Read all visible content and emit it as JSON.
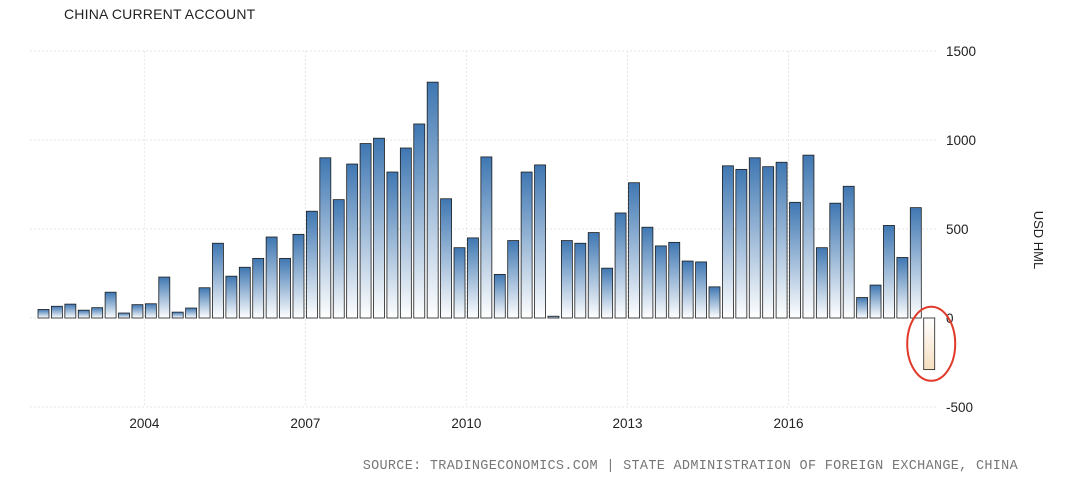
{
  "chart_data": {
    "type": "bar",
    "title": "CHINA CURRENT ACCOUNT",
    "ylabel": "USD HML",
    "ylim": [
      -500,
      1500
    ],
    "yticks": [
      -500,
      0,
      500,
      1000,
      1500
    ],
    "xticks": [
      "2004",
      "2007",
      "2010",
      "2013",
      "2016"
    ],
    "grid": true,
    "source": "SOURCE: TRADINGECONOMICS.COM | STATE ADMINISTRATION OF FOREIGN EXCHANGE, CHINA",
    "highlight": {
      "shape": "ellipse",
      "color": "#e03a2a",
      "index": 66
    },
    "colors": {
      "bar_top": "#3f77b2",
      "bar_bottom": "#ffffff",
      "negative_top": "#ffffff",
      "negative_bottom": "#f5dfc0",
      "bar_stroke": "#1e1e1e"
    },
    "values": [
      48,
      66,
      78,
      44,
      58,
      145,
      28,
      75,
      80,
      230,
      33,
      56,
      170,
      420,
      235,
      285,
      335,
      455,
      335,
      470,
      600,
      900,
      665,
      865,
      980,
      1010,
      820,
      955,
      1090,
      1325,
      670,
      395,
      450,
      905,
      245,
      435,
      820,
      860,
      10,
      435,
      420,
      480,
      280,
      590,
      760,
      510,
      405,
      425,
      320,
      315,
      175,
      855,
      835,
      900,
      850,
      875,
      650,
      915,
      395,
      645,
      740,
      115,
      185,
      520,
      340,
      620,
      -290
    ]
  }
}
